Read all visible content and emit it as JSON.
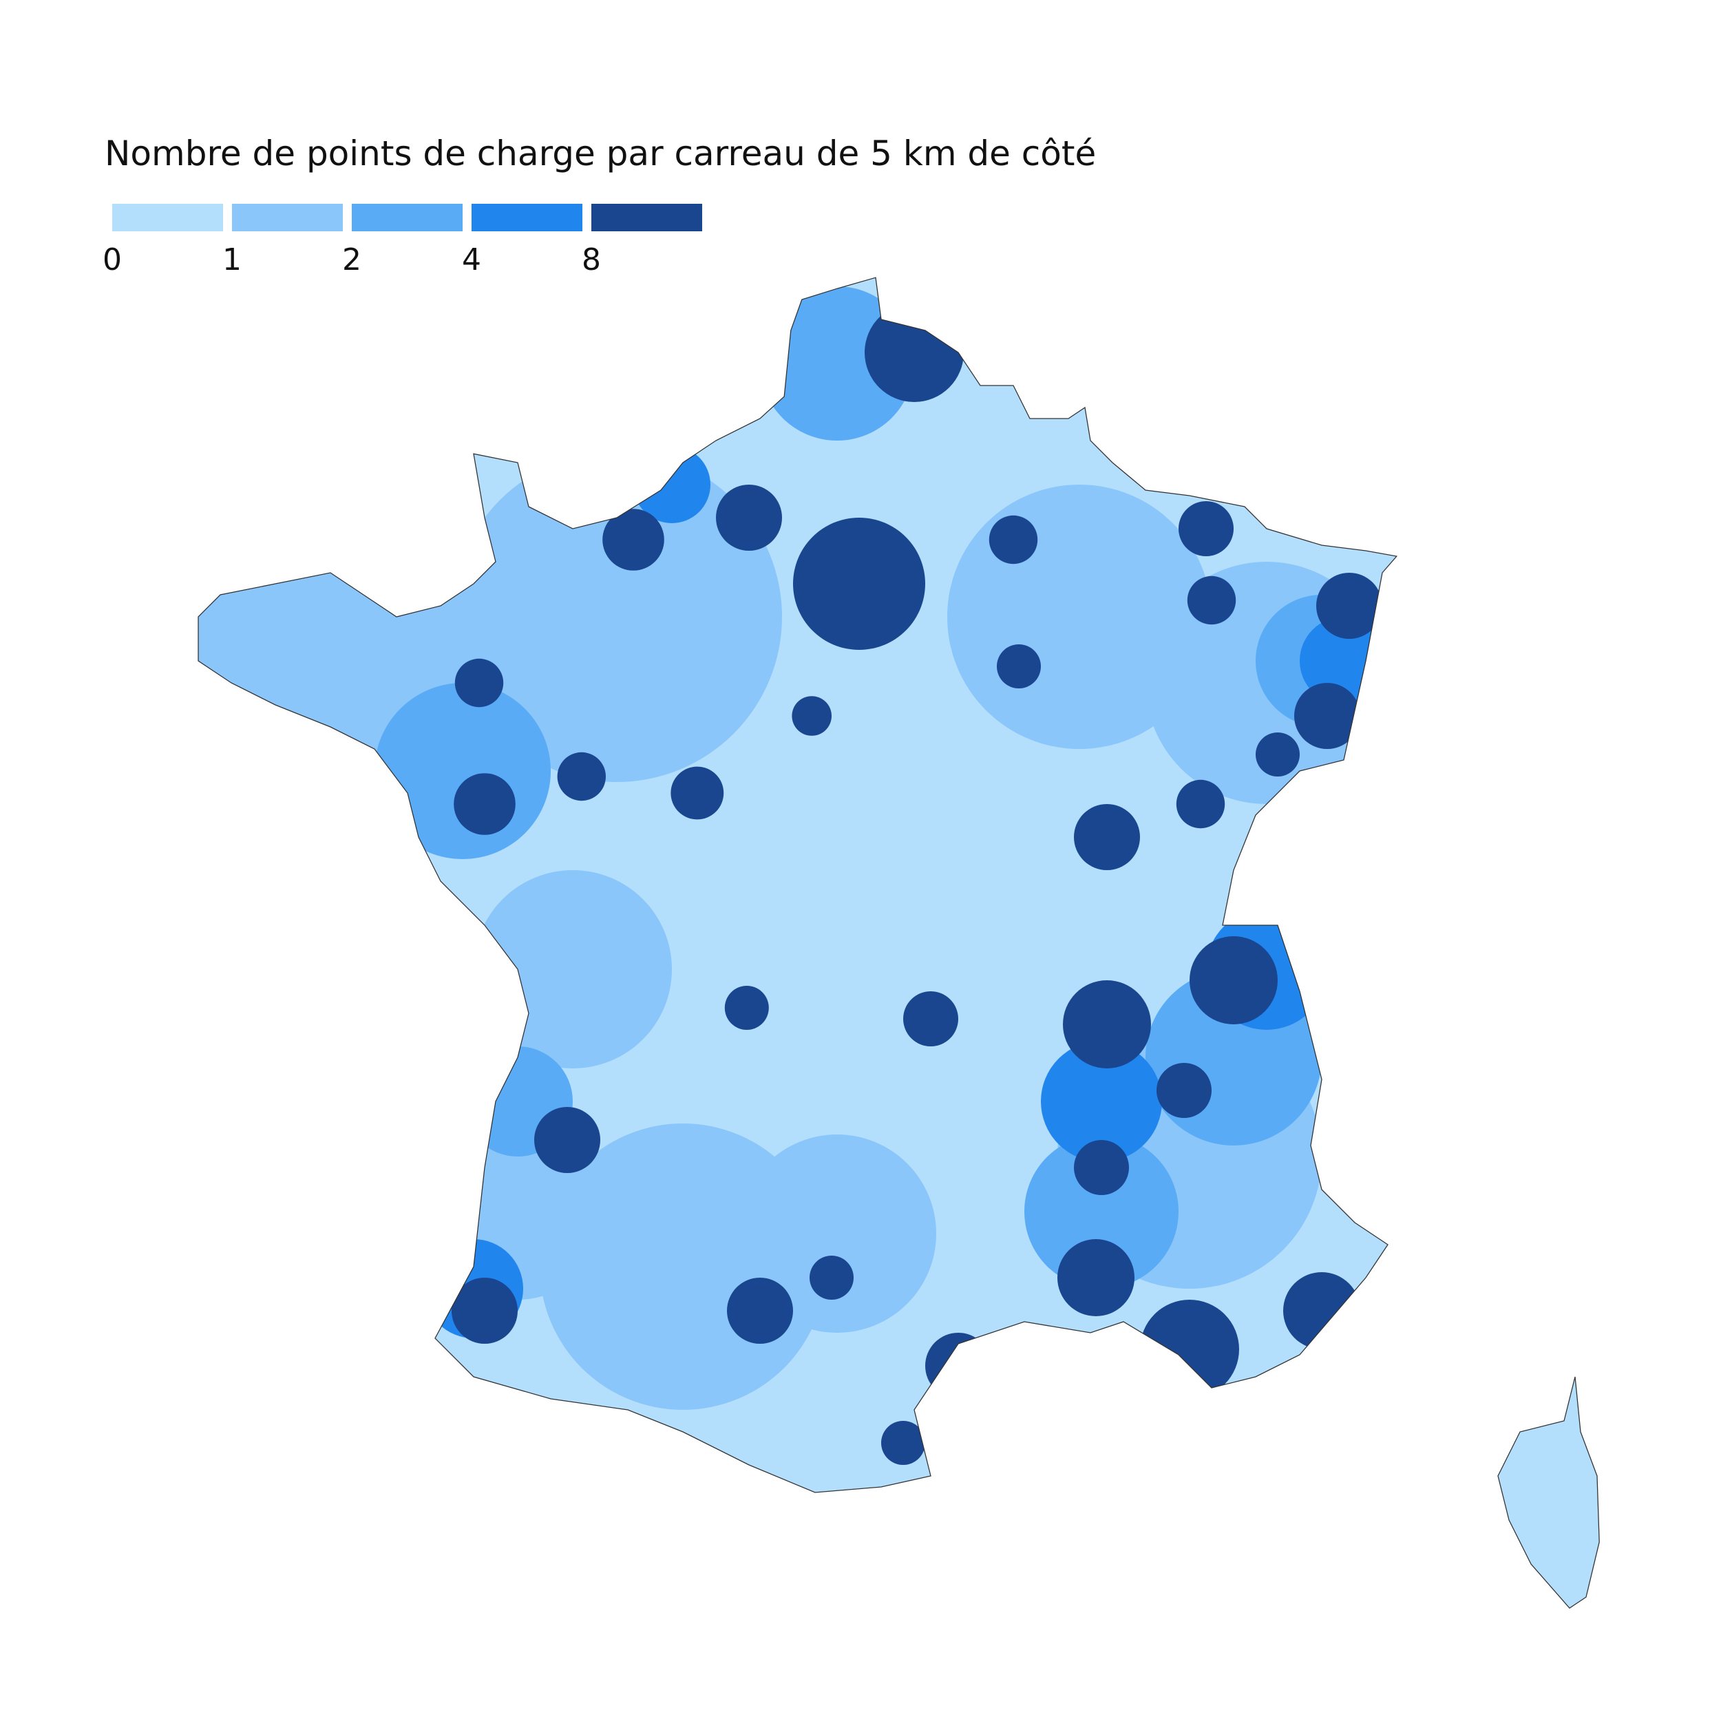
{
  "legend": {
    "title": "Nombre de points de charge par carreau de 5 km de côté",
    "breaks": [
      0,
      1,
      2,
      4,
      8
    ],
    "colors": [
      "#b3defc",
      "#8ac6f9",
      "#5aabf5",
      "#2086ee",
      "#1a4690"
    ]
  }
}
